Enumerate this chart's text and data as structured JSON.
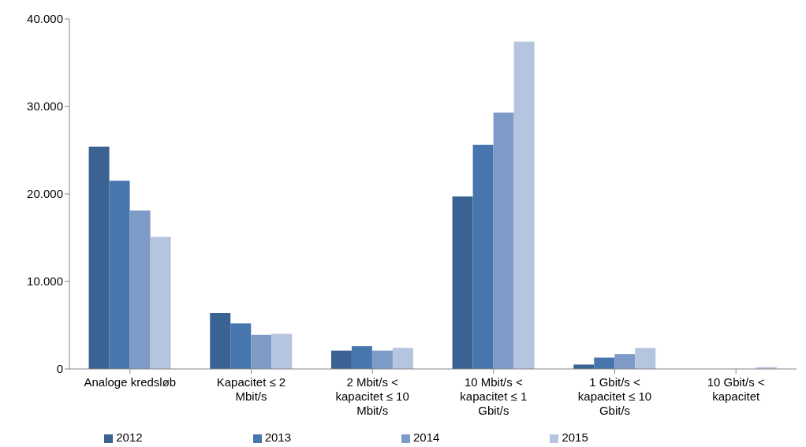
{
  "chart_data": {
    "type": "bar",
    "categories": [
      "Analoge kredsløb",
      "Kapacitet ≤ 2 Mbit/s",
      "2 Mbit/s < kapacitet ≤ 10 Mbit/s",
      "10 Mbit/s < kapacitet ≤ 1 Gbit/s",
      "1 Gbit/s < kapacitet ≤ 10 Gbit/s",
      "10 Gbit/s < kapacitet"
    ],
    "series": [
      {
        "name": "2012",
        "color": "#3a6293",
        "values": [
          25400,
          6400,
          2100,
          19700,
          500,
          0
        ]
      },
      {
        "name": "2013",
        "color": "#4776ae",
        "values": [
          21500,
          5200,
          2600,
          25600,
          1300,
          0
        ]
      },
      {
        "name": "2014",
        "color": "#7e9bc8",
        "values": [
          18100,
          3900,
          2100,
          29300,
          1700,
          0
        ]
      },
      {
        "name": "2015",
        "color": "#b5c4df",
        "values": [
          15100,
          4000,
          2400,
          37400,
          2400,
          200
        ]
      }
    ],
    "ylim": [
      0,
      40000
    ],
    "yticks": [
      {
        "value": 0,
        "label": "0"
      },
      {
        "value": 10000,
        "label": "10.000"
      },
      {
        "value": 20000,
        "label": "20.000"
      },
      {
        "value": 30000,
        "label": "30.000"
      },
      {
        "value": 40000,
        "label": "40.000"
      }
    ],
    "grid": false,
    "legend": "bottom"
  }
}
